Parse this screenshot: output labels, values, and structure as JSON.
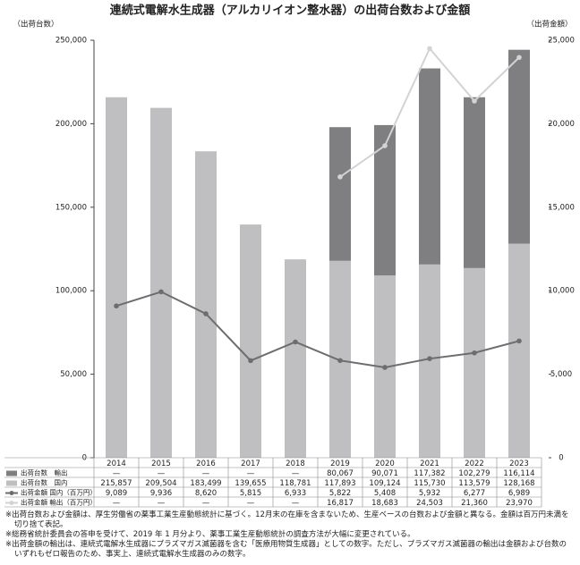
{
  "chart_data": {
    "type": "bar-line",
    "title": "連続式電解水生成器（アルカリイオン整水器）の出荷台数および金額",
    "y_label": "（出荷台数）",
    "y2_label": "（出荷金額）",
    "categories": [
      "2014",
      "2015",
      "2016",
      "2017",
      "2018",
      "2019",
      "2020",
      "2021",
      "2022",
      "2023"
    ],
    "ylim": [
      0,
      250000
    ],
    "yticks": [
      0,
      {
        "value": 50000,
        "label": "50,000"
      },
      {
        "value": 100000,
        "label": "100,000"
      },
      {
        "value": 150000,
        "label": "150,000"
      },
      {
        "value": 200000,
        "label": "200,000"
      },
      {
        "value": 250000,
        "label": "250,000"
      }
    ],
    "y2lim": [
      0,
      25000
    ],
    "y2ticks": [
      0,
      {
        "value": 5000,
        "label": "5,000"
      },
      {
        "value": 10000,
        "label": "10,000"
      },
      {
        "value": 15000,
        "label": "15,000"
      },
      {
        "value": 20000,
        "label": "20,000"
      },
      {
        "value": 25000,
        "label": "25,000"
      }
    ],
    "series": [
      {
        "name": "出荷台数　輸出",
        "type": "bar",
        "color": "#7f7f81",
        "values": [
          null,
          null,
          null,
          null,
          null,
          80067,
          90071,
          117382,
          102279,
          116114
        ],
        "value_labels": [
          "—",
          "—",
          "—",
          "—",
          "—",
          "80,067",
          "90,071",
          "117,382",
          "102,279",
          "116,114"
        ]
      },
      {
        "name": "出荷台数　国内",
        "type": "bar",
        "color": "#bfbfc1",
        "values": [
          215857,
          209504,
          183499,
          139655,
          118781,
          117893,
          109124,
          115730,
          113579,
          128168
        ],
        "value_labels": [
          "215,857",
          "209,504",
          "183,499",
          "139,655",
          "118,781",
          "117,893",
          "109,124",
          "115,730",
          "113,579",
          "128,168"
        ]
      },
      {
        "name": "出荷金額 国内（百万円）",
        "type": "line",
        "axis": "y2",
        "color": "#6d6d6d",
        "values": [
          9089,
          9936,
          8620,
          5815,
          6933,
          5822,
          5408,
          5932,
          6277,
          6989
        ],
        "value_labels": [
          "9,089",
          "9,936",
          "8,620",
          "5,815",
          "6,933",
          "5,822",
          "5,408",
          "5,932",
          "6,277",
          "6,989"
        ]
      },
      {
        "name": "出荷金額 輸出（百万円）",
        "type": "line",
        "axis": "y2",
        "color": "#d3d3d3",
        "values": [
          null,
          null,
          null,
          null,
          null,
          16817,
          18683,
          24503,
          21360,
          23970
        ],
        "value_labels": [
          "—",
          "—",
          "—",
          "—",
          "—",
          "16,817",
          "18,683",
          "24,503",
          "21,360",
          "23,970"
        ]
      }
    ],
    "notes": [
      "※出荷台数および金額は、厚生労働省の薬事工業生産動態統計に基づく。12月末の在庫を含まないため、生産ベースの台数および金額と異なる。金額は百万円未満を切り捨て表記。",
      "※総務省統計委員会の答申を受けて、2019 年 1 月分より、薬事工業生産動態統計の調査方法が大幅に変更されている。",
      "※出荷金額の輸出は、連続式電解水生成器にプラズマガス滅菌器を含む「医療用物質生成器」としての数字。ただし、プラズマガス滅菌器の輸出は金額および台数のいずれもゼロ報告のため、事実上、連続式電解水生成器のみの数字。"
    ]
  }
}
